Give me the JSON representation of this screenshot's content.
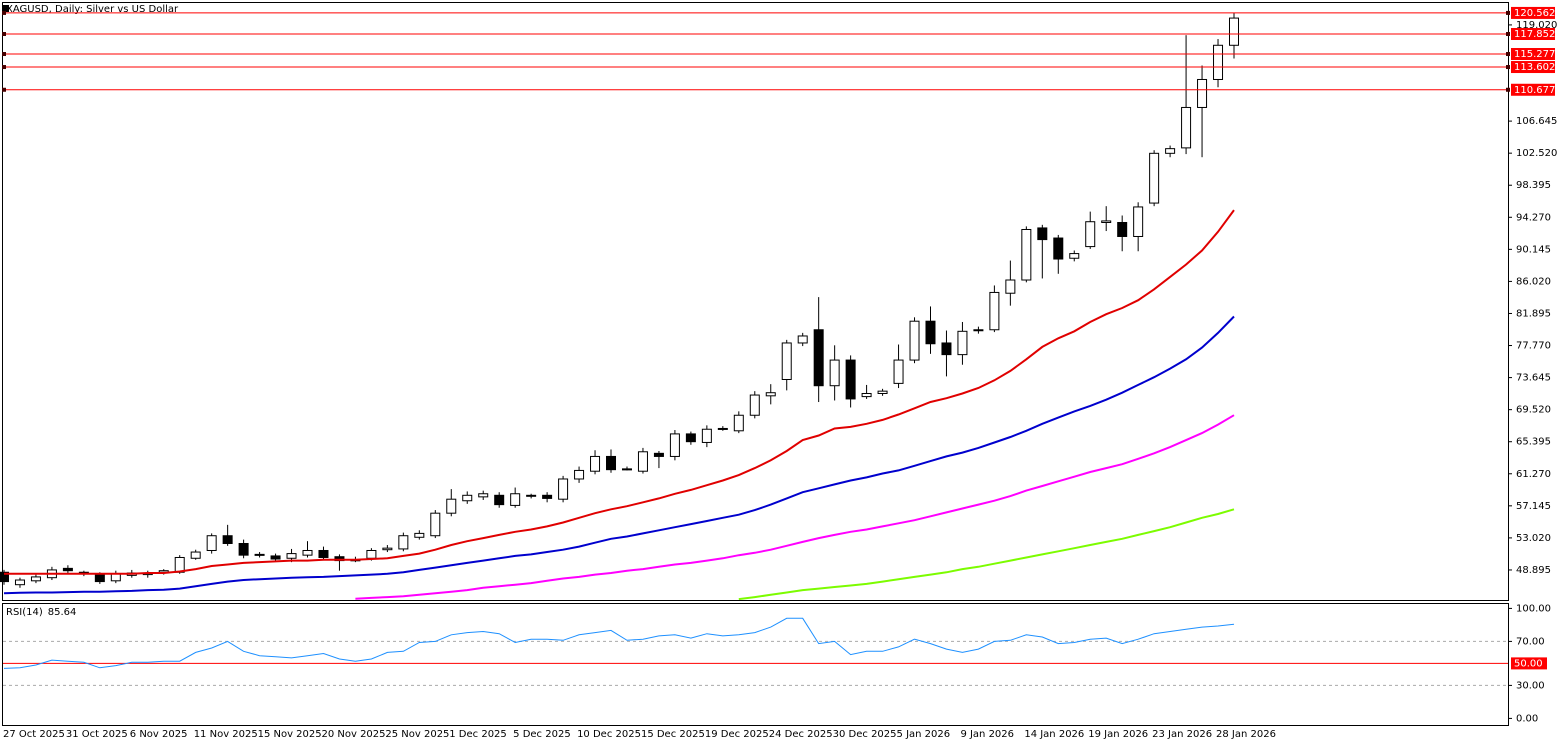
{
  "chart_data": [
    {
      "type": "candlestick",
      "title": "XAGUSD, Daily:  Silver vs US Dollar",
      "x": [
        "27 Oct 2025",
        null,
        null,
        null,
        "31 Oct 2025",
        null,
        null,
        null,
        "6 Nov 2025",
        null,
        null,
        null,
        "11 Nov 2025",
        null,
        null,
        null,
        "15 Nov 2025",
        null,
        null,
        null,
        "20 Nov 2025",
        null,
        null,
        null,
        "25 Nov 2025",
        null,
        null,
        null,
        "1 Dec 2025",
        null,
        null,
        null,
        "5 Dec 2025",
        null,
        null,
        null,
        "10 Dec 2025",
        null,
        null,
        null,
        "15 Dec 2025",
        null,
        null,
        null,
        "19 Dec 2025",
        null,
        null,
        null,
        "24 Dec 2025",
        null,
        null,
        null,
        "30 Dec 2025",
        null,
        null,
        null,
        "5 Jan 2026",
        null,
        null,
        null,
        "9 Jan 2026",
        null,
        null,
        null,
        "14 Jan 2026",
        null,
        null,
        null,
        "19 Jan 2026",
        null,
        null,
        null,
        "23 Jan 2026",
        null,
        null,
        null,
        "28 Jan 2026",
        null
      ],
      "open": [
        48.6,
        47.0,
        47.5,
        47.9,
        49.1,
        48.6,
        48.3,
        47.5,
        48.2,
        48.3,
        48.6,
        48.6,
        50.4,
        51.4,
        53.3,
        52.3,
        50.9,
        50.7,
        50.4,
        50.8,
        51.4,
        50.6,
        50.2,
        50.4,
        51.5,
        51.6,
        53.1,
        53.3,
        56.2,
        57.8,
        58.3,
        58.5,
        57.2,
        58.4,
        58.5,
        58.0,
        60.6,
        61.6,
        63.5,
        61.9,
        61.6,
        63.9,
        63.5,
        66.4,
        65.3,
        67.0,
        66.8,
        68.8,
        71.3,
        73.4,
        78.1,
        79.8,
        72.6,
        75.9,
        71.2,
        71.6,
        72.9,
        75.9,
        80.9,
        78.1,
        76.6,
        79.7,
        79.8,
        84.5,
        86.2,
        92.9,
        91.6,
        89.0,
        90.5,
        93.6,
        93.6,
        91.8,
        96.1,
        102.5,
        103.2,
        108.4,
        112.0,
        116.4
      ],
      "high": [
        48.9,
        47.9,
        48.3,
        49.3,
        49.5,
        48.8,
        48.6,
        48.8,
        48.9,
        48.8,
        49.0,
        50.8,
        51.5,
        53.6,
        54.7,
        52.8,
        51.2,
        51.0,
        51.6,
        52.6,
        51.9,
        50.9,
        50.6,
        51.7,
        52.1,
        53.7,
        54.0,
        56.6,
        59.3,
        59.0,
        59.1,
        58.9,
        59.5,
        58.7,
        58.9,
        61.0,
        62.2,
        64.3,
        64.4,
        62.2,
        64.6,
        64.2,
        66.9,
        66.7,
        67.5,
        67.4,
        69.3,
        71.9,
        72.8,
        78.5,
        79.4,
        84.0,
        77.8,
        76.5,
        72.7,
        72.2,
        77.9,
        81.4,
        82.8,
        79.7,
        80.8,
        80.2,
        85.5,
        88.7,
        93.1,
        93.3,
        92.0,
        90.0,
        95.0,
        95.7,
        94.5,
        96.2,
        102.9,
        103.5,
        117.7,
        113.8,
        117.2,
        120.56
      ],
      "low": [
        47.0,
        46.6,
        47.2,
        47.6,
        48.5,
        48.1,
        47.1,
        47.2,
        47.9,
        47.9,
        48.3,
        48.4,
        50.2,
        51.0,
        52.0,
        50.4,
        50.5,
        50.0,
        49.9,
        50.5,
        50.2,
        48.8,
        49.9,
        50.1,
        51.2,
        51.3,
        52.8,
        53.0,
        55.8,
        57.4,
        57.9,
        56.9,
        56.9,
        58.1,
        57.6,
        57.6,
        60.1,
        61.2,
        61.4,
        61.7,
        61.3,
        62.0,
        63.0,
        65.0,
        64.7,
        66.8,
        66.5,
        68.4,
        70.2,
        72.0,
        77.7,
        70.5,
        70.7,
        69.8,
        70.9,
        71.3,
        72.3,
        75.5,
        76.7,
        73.8,
        75.3,
        79.3,
        79.5,
        82.9,
        85.9,
        86.4,
        87.0,
        88.6,
        90.2,
        92.5,
        89.9,
        89.9,
        95.7,
        102.0,
        102.4,
        102.0,
        111.0,
        114.7
      ],
      "close": [
        47.4,
        47.6,
        48.0,
        48.9,
        48.8,
        48.5,
        47.4,
        48.4,
        48.5,
        48.5,
        48.8,
        50.5,
        51.2,
        53.3,
        52.3,
        50.8,
        50.8,
        50.3,
        51.0,
        51.4,
        50.5,
        50.1,
        50.2,
        51.4,
        51.7,
        53.3,
        53.6,
        56.2,
        58.0,
        58.5,
        58.7,
        57.3,
        58.7,
        58.5,
        58.1,
        60.6,
        61.7,
        63.5,
        61.8,
        61.9,
        64.1,
        63.5,
        66.4,
        65.4,
        67.0,
        67.1,
        68.8,
        71.4,
        71.7,
        78.1,
        79.0,
        72.6,
        75.9,
        70.9,
        71.6,
        71.9,
        75.9,
        80.9,
        78.0,
        76.6,
        79.6,
        79.8,
        84.6,
        86.2,
        92.7,
        91.4,
        88.9,
        89.6,
        93.7,
        93.8,
        91.8,
        95.6,
        102.5,
        103.1,
        108.4,
        112.0,
        116.4,
        119.9
      ],
      "up_color": "#ffffff",
      "down_color": "#000000",
      "series": [
        {
          "color": "#e00000",
          "values": [
            48.4,
            48.4,
            48.4,
            48.4,
            48.4,
            48.4,
            48.4,
            48.4,
            48.4,
            48.5,
            48.5,
            48.7,
            49.0,
            49.4,
            49.6,
            49.8,
            49.9,
            50.0,
            50.1,
            50.1,
            50.2,
            50.2,
            50.2,
            50.3,
            50.4,
            50.7,
            51.0,
            51.5,
            52.1,
            52.6,
            53.0,
            53.4,
            53.8,
            54.1,
            54.5,
            55.0,
            55.6,
            56.2,
            56.7,
            57.1,
            57.6,
            58.1,
            58.7,
            59.2,
            59.8,
            60.4,
            61.1,
            62.0,
            63.0,
            64.2,
            65.6,
            66.2,
            67.1,
            67.3,
            67.7,
            68.2,
            68.9,
            69.7,
            70.5,
            71.0,
            71.6,
            72.3,
            73.3,
            74.5,
            76.0,
            77.6,
            78.7,
            79.6,
            80.8,
            81.8,
            82.6,
            83.6,
            85.0,
            86.6,
            88.2,
            90.0,
            92.4,
            95.2
          ]
        },
        {
          "color": "#0000cd",
          "values": [
            45.9,
            45.95,
            46.0,
            46.0,
            46.05,
            46.1,
            46.1,
            46.15,
            46.2,
            46.3,
            46.35,
            46.5,
            46.8,
            47.1,
            47.4,
            47.6,
            47.7,
            47.8,
            47.9,
            47.95,
            48.0,
            48.1,
            48.2,
            48.3,
            48.4,
            48.6,
            48.9,
            49.2,
            49.5,
            49.8,
            50.1,
            50.4,
            50.7,
            50.9,
            51.2,
            51.5,
            51.9,
            52.4,
            52.9,
            53.2,
            53.6,
            54.0,
            54.4,
            54.8,
            55.2,
            55.6,
            56.0,
            56.6,
            57.3,
            58.1,
            58.9,
            59.4,
            59.9,
            60.4,
            60.8,
            61.3,
            61.7,
            62.3,
            62.9,
            63.5,
            64.0,
            64.6,
            65.3,
            66.0,
            66.8,
            67.7,
            68.5,
            69.3,
            70.0,
            70.8,
            71.7,
            72.7,
            73.7,
            74.8,
            76.0,
            77.5,
            79.4,
            81.5
          ]
        },
        {
          "color": "#ff00ff",
          "values": [
            null,
            null,
            null,
            null,
            null,
            null,
            null,
            null,
            null,
            null,
            null,
            null,
            null,
            null,
            null,
            null,
            null,
            null,
            null,
            null,
            null,
            null,
            45.2,
            45.3,
            45.4,
            45.5,
            45.7,
            45.9,
            46.1,
            46.3,
            46.6,
            46.8,
            47.0,
            47.2,
            47.5,
            47.8,
            48.0,
            48.3,
            48.5,
            48.8,
            49.0,
            49.3,
            49.6,
            49.8,
            50.1,
            50.4,
            50.8,
            51.1,
            51.5,
            52.0,
            52.5,
            53.0,
            53.4,
            53.8,
            54.1,
            54.5,
            54.9,
            55.3,
            55.8,
            56.3,
            56.8,
            57.3,
            57.8,
            58.4,
            59.1,
            59.7,
            60.3,
            60.9,
            61.5,
            62.0,
            62.5,
            63.2,
            63.9,
            64.7,
            65.6,
            66.5,
            67.6,
            68.8
          ]
        },
        {
          "color": "#7cfc00",
          "values": [
            null,
            null,
            null,
            null,
            null,
            null,
            null,
            null,
            null,
            null,
            null,
            null,
            null,
            null,
            null,
            null,
            null,
            null,
            null,
            null,
            null,
            null,
            null,
            null,
            null,
            null,
            null,
            null,
            null,
            null,
            null,
            null,
            null,
            null,
            null,
            null,
            null,
            null,
            null,
            null,
            null,
            null,
            null,
            null,
            null,
            null,
            45.15,
            45.4,
            45.7,
            46.0,
            46.3,
            46.5,
            46.7,
            46.9,
            47.1,
            47.4,
            47.7,
            48.0,
            48.3,
            48.6,
            49.0,
            49.3,
            49.7,
            50.1,
            50.5,
            50.9,
            51.3,
            51.7,
            52.1,
            52.5,
            52.9,
            53.4,
            53.9,
            54.4,
            55.0,
            55.6,
            56.1,
            56.7
          ]
        }
      ],
      "levels": [
        120.562,
        117.852,
        115.277,
        113.602,
        110.677
      ],
      "level_color": "#ff0000",
      "ylim": [
        45.03,
        121.84
      ],
      "yticks": [
        48.895,
        {
          "value": 53.02,
          "label": "53.020"
        },
        57.145,
        {
          "value": 61.27,
          "label": "61.270"
        },
        65.395,
        {
          "value": 69.52,
          "label": "69.520"
        },
        73.645,
        {
          "value": 77.77,
          "label": "77.770"
        },
        81.895,
        {
          "value": 86.02,
          "label": "86.020"
        },
        90.145,
        {
          "value": 94.27,
          "label": "94.270"
        },
        98.395,
        {
          "value": 102.52,
          "label": "102.520"
        },
        106.645,
        {
          "value": 119.02,
          "label": "119.020"
        }
      ]
    },
    {
      "type": "line",
      "title": "RSI(14)",
      "color": "#1e90ff",
      "values": [
        45.5,
        46.0,
        48.5,
        53,
        52,
        51,
        46,
        48,
        51,
        51,
        52,
        52,
        60,
        64,
        70,
        61,
        57,
        56,
        55,
        57,
        59,
        54,
        52,
        54,
        60,
        61,
        69,
        70,
        76,
        78,
        79,
        77,
        69,
        72,
        72,
        71,
        76,
        78,
        80,
        71,
        72,
        75,
        76,
        73,
        77,
        75,
        76,
        78,
        83,
        91,
        91,
        68,
        70,
        58,
        61,
        61,
        65,
        72,
        68,
        63,
        60,
        63,
        70,
        71,
        76,
        74,
        68,
        69,
        72,
        73,
        68,
        72,
        77,
        79,
        81,
        83,
        84,
        85.64
      ],
      "ylim": [
        -6,
        104
      ],
      "yticks": [
        {
          "value": 100,
          "label": "100.00"
        },
        {
          "value": 70,
          "label": "70.00"
        },
        {
          "value": 30,
          "label": "30.00"
        },
        {
          "value": 0,
          "label": "0.00"
        }
      ],
      "dashed_levels": [
        70,
        30
      ],
      "level": {
        "value": 50,
        "label": "50.00",
        "color": "#ff0000"
      }
    }
  ]
}
